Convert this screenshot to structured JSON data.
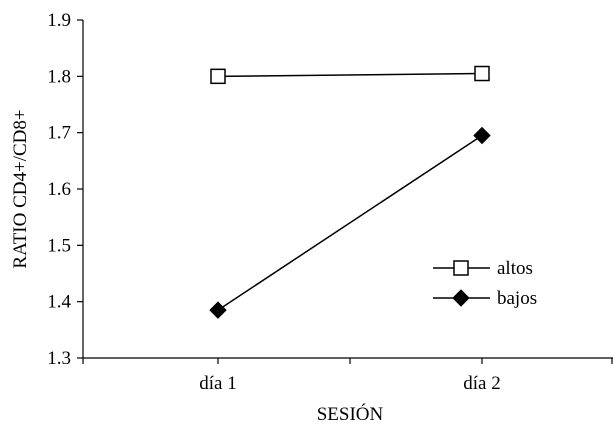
{
  "chart_data": {
    "type": "line",
    "title": "",
    "xlabel": "SESIÓN",
    "ylabel": "RATIO CD4+/CD8+",
    "categories": [
      "día 1",
      "día 2"
    ],
    "ylim": [
      1.3,
      1.9
    ],
    "yticks": [
      "1.3",
      "1.4",
      "1.5",
      "1.6",
      "1.7",
      "1.8",
      "1.9"
    ],
    "grid": false,
    "legend_position": "right",
    "series": [
      {
        "name": "altos",
        "values": [
          1.8,
          1.805
        ],
        "marker": "open-square",
        "color": "#000000"
      },
      {
        "name": "bajos",
        "values": [
          1.385,
          1.695
        ],
        "marker": "filled-diamond",
        "color": "#000000"
      }
    ]
  }
}
